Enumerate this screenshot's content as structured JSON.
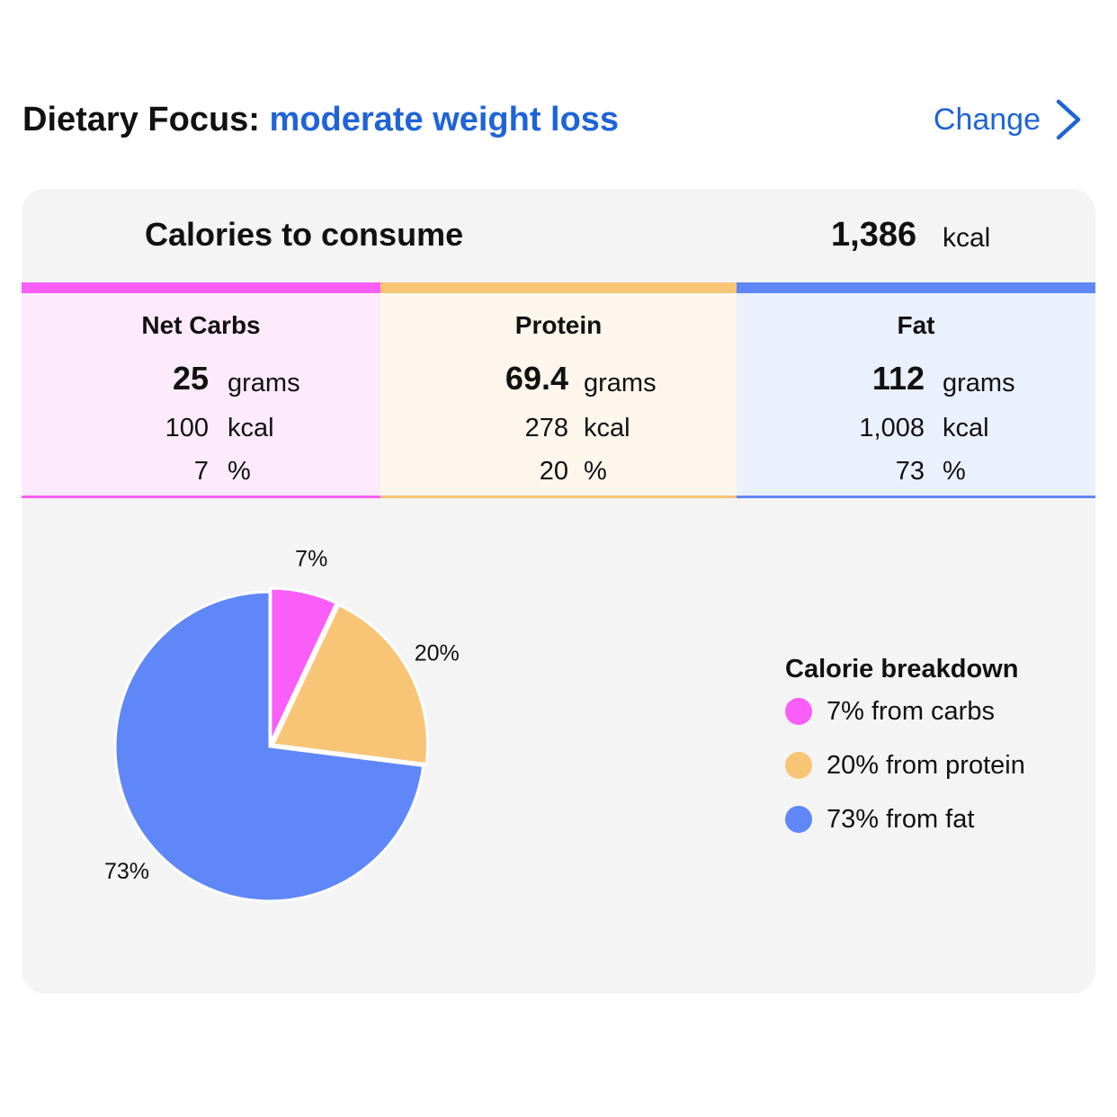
{
  "header": {
    "focus_label": "Dietary Focus:",
    "focus_value": "moderate weight loss",
    "change_label": "Change",
    "change_icon": "chevron-right-icon"
  },
  "calories": {
    "label": "Calories to consume",
    "value": "1,386",
    "unit": "kcal"
  },
  "macros": [
    {
      "name": "Net Carbs",
      "grams": "25",
      "grams_unit": "grams",
      "kcal": "100",
      "kcal_unit": "kcal",
      "pct": "7",
      "pct_unit": "%",
      "color": "#f95ff8",
      "bg": "#fdebfc"
    },
    {
      "name": "Protein",
      "grams": "69.4",
      "grams_unit": "grams",
      "kcal": "278",
      "kcal_unit": "kcal",
      "pct": "20",
      "pct_unit": "%",
      "color": "#f8c576",
      "bg": "#fdf6ec"
    },
    {
      "name": "Fat",
      "grams": "112",
      "grams_unit": "grams",
      "kcal": "1,008",
      "kcal_unit": "kcal",
      "pct": "73",
      "pct_unit": "%",
      "color": "#5f87f8",
      "bg": "#ebf0fd"
    }
  ],
  "chart_data": {
    "type": "pie",
    "categories": [
      "carbs",
      "protein",
      "fat"
    ],
    "values": [
      7,
      20,
      73
    ],
    "labels": [
      "7%",
      "20%",
      "73%"
    ],
    "colors": [
      "#f95ff8",
      "#f8c576",
      "#5f87f8"
    ],
    "legend_placement": "right"
  },
  "legend": {
    "title": "Calorie breakdown",
    "items": [
      {
        "label": "7% from carbs",
        "color": "#f95ff8"
      },
      {
        "label": "20% from protein",
        "color": "#f8c576"
      },
      {
        "label": "73% from fat",
        "color": "#5f87f8"
      }
    ]
  }
}
